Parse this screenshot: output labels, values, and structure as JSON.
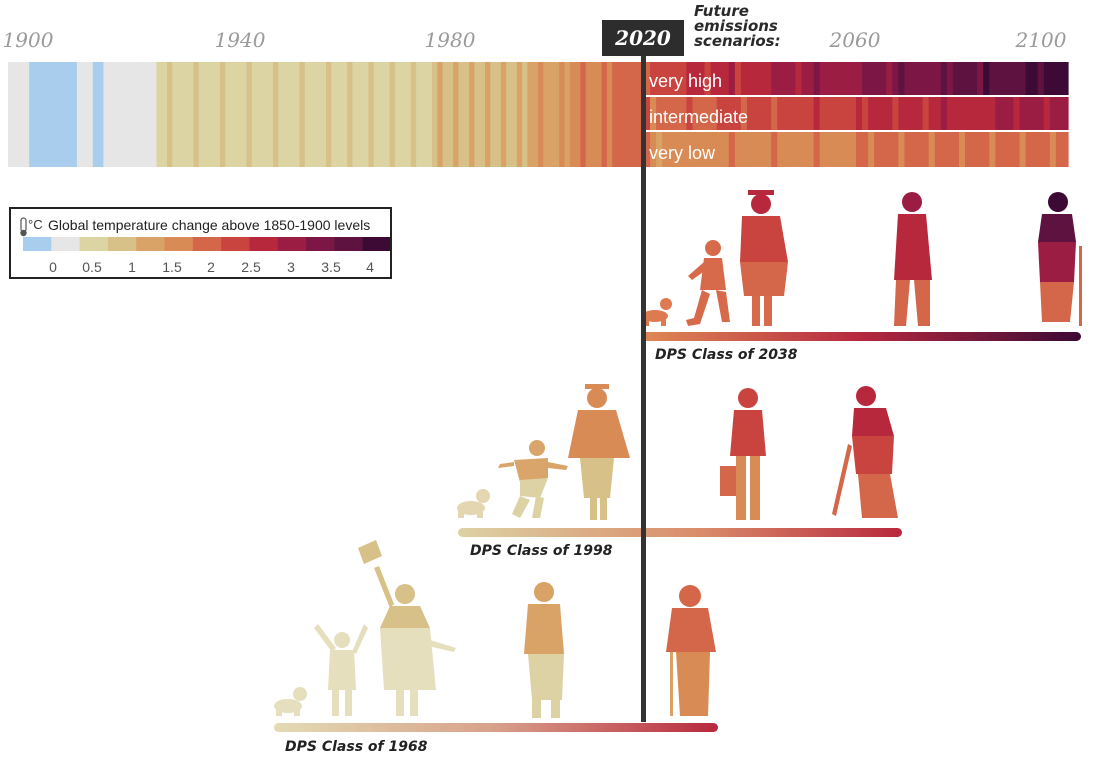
{
  "timeline": {
    "year_labels": [
      "1900",
      "1940",
      "1980",
      "2060",
      "2100"
    ],
    "current_year": "2020",
    "future_title": [
      "Future",
      "emissions",
      "scenarios:"
    ]
  },
  "scenarios": [
    {
      "label": "very high"
    },
    {
      "label": "intermediate"
    },
    {
      "label": "very low"
    }
  ],
  "legend": {
    "unit": "°C",
    "title": "Global temperature change above 1850-1900 levels",
    "ticks": [
      "0",
      "0.5",
      "1",
      "1.5",
      "2",
      "2.5",
      "3",
      "3.5",
      "4"
    ],
    "colors": [
      "#a9cdec",
      "#e6e6e6",
      "#ddd4a4",
      "#d8c089",
      "#d9a367",
      "#d98b55",
      "#d4664a",
      "#c9443e",
      "#b8283d",
      "#9c1d43",
      "#7c1745",
      "#5d123f",
      "#3c0a35"
    ]
  },
  "classes": [
    {
      "label": "DPS Class of 2038"
    },
    {
      "label": "DPS Class of 1998"
    },
    {
      "label": "DPS Class of 1968"
    }
  ],
  "colors": {
    "timeline_marker": "#333333",
    "future_box": "#2d2d2d"
  }
}
